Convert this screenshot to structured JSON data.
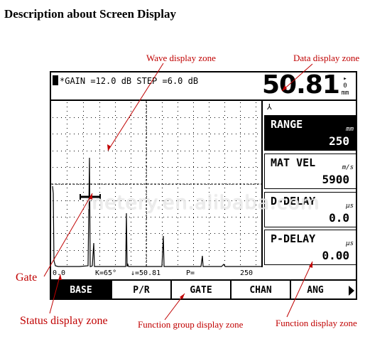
{
  "page_title": "Description about Screen Display",
  "callouts": {
    "wave_display_zone": "Wave display zone",
    "data_display_zone": "Data  display zone",
    "gate": "Gate",
    "status_display_zone": "Status display zone",
    "function_group_display_zone": "Function  group display zone",
    "function_display_zone": "Function  display zone"
  },
  "device": {
    "gain_line": "*GAIN =12.0 dB STEP =6.0 dB",
    "main_reading": "50.81",
    "main_unit": "mm",
    "main_unit_prefix": "0",
    "params": [
      {
        "name": "RANGE",
        "value": "250",
        "unit": "mm",
        "selected": true
      },
      {
        "name": "MAT VEL",
        "value": "5900",
        "unit": "m/s",
        "selected": false
      },
      {
        "name": "D-DELAY",
        "value": "0.0",
        "unit": "µs",
        "selected": false
      },
      {
        "name": "P-DELAY",
        "value": "0.00",
        "unit": "µs",
        "selected": false
      }
    ],
    "status": {
      "start": "0.0",
      "angle": "K=65°",
      "depth": "↓=50.81",
      "probe": "P=",
      "end": "250"
    },
    "function_groups": [
      {
        "label": "BASE",
        "active": true
      },
      {
        "label": "P/R",
        "active": false
      },
      {
        "label": "GATE",
        "active": false
      },
      {
        "label": "CHAN",
        "active": false
      },
      {
        "label": "ANG",
        "active": false
      }
    ]
  },
  "watermark": "metery.en.alibaba.com",
  "colors": {
    "callout": "#c00000",
    "screen_fg": "#000000",
    "screen_bg": "#ffffff"
  }
}
